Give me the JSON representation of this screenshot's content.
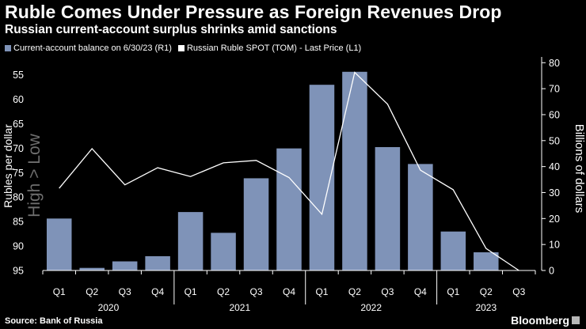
{
  "header": {
    "title": "Ruble Comes Under Pressure as Foreign Revenues Drop",
    "subtitle": "Russian current-account surplus shrinks amid sanctions"
  },
  "footer": {
    "source": "Source: Bank of Russia",
    "brand": "Bloomberg"
  },
  "colors": {
    "background": "#000000",
    "bar": "#7f93b8",
    "line": "#ffffff",
    "text": "#ffffff",
    "axis": "#ffffff",
    "watermark": "#6e6e6e"
  },
  "chart_data": {
    "type": "bar",
    "categories": [
      "Q1",
      "Q2",
      "Q3",
      "Q4",
      "Q1",
      "Q2",
      "Q3",
      "Q4",
      "Q1",
      "Q2",
      "Q3",
      "Q4",
      "Q1",
      "Q2",
      "Q3"
    ],
    "year_labels": [
      {
        "label": "2020",
        "start": 0,
        "end": 3
      },
      {
        "label": "2021",
        "start": 4,
        "end": 7
      },
      {
        "label": "2022",
        "start": 8,
        "end": 11
      },
      {
        "label": "2023",
        "start": 12,
        "end": 14
      }
    ],
    "series": [
      {
        "name": "Current-account balance on 6/30/23 (R1)",
        "type": "bar",
        "axis": "right",
        "values": [
          20,
          1,
          3.5,
          5.5,
          22.5,
          14.5,
          35.5,
          47,
          71.5,
          76.5,
          47.5,
          41,
          15,
          7,
          null
        ]
      },
      {
        "name": "Russian Ruble SPOT (TOM) - Last Price (L1)",
        "type": "line",
        "axis": "left",
        "values": [
          78.2,
          70.1,
          77.5,
          74.0,
          75.8,
          73.0,
          72.5,
          76.0,
          83.5,
          54.5,
          61.0,
          74.5,
          78.5,
          90.5,
          95.0
        ]
      }
    ],
    "left_axis": {
      "label": "Rubles per dollar",
      "range": [
        95,
        52
      ],
      "ticks": [
        55,
        60,
        65,
        70,
        75,
        80,
        85,
        90,
        95
      ],
      "inverted": true,
      "watermark": "High > Low"
    },
    "right_axis": {
      "label": "Billions of dollars",
      "range": [
        0,
        81
      ],
      "ticks": [
        0,
        10,
        20,
        30,
        40,
        50,
        60,
        70,
        80
      ]
    },
    "legend_position": "top-left",
    "grid": false
  }
}
